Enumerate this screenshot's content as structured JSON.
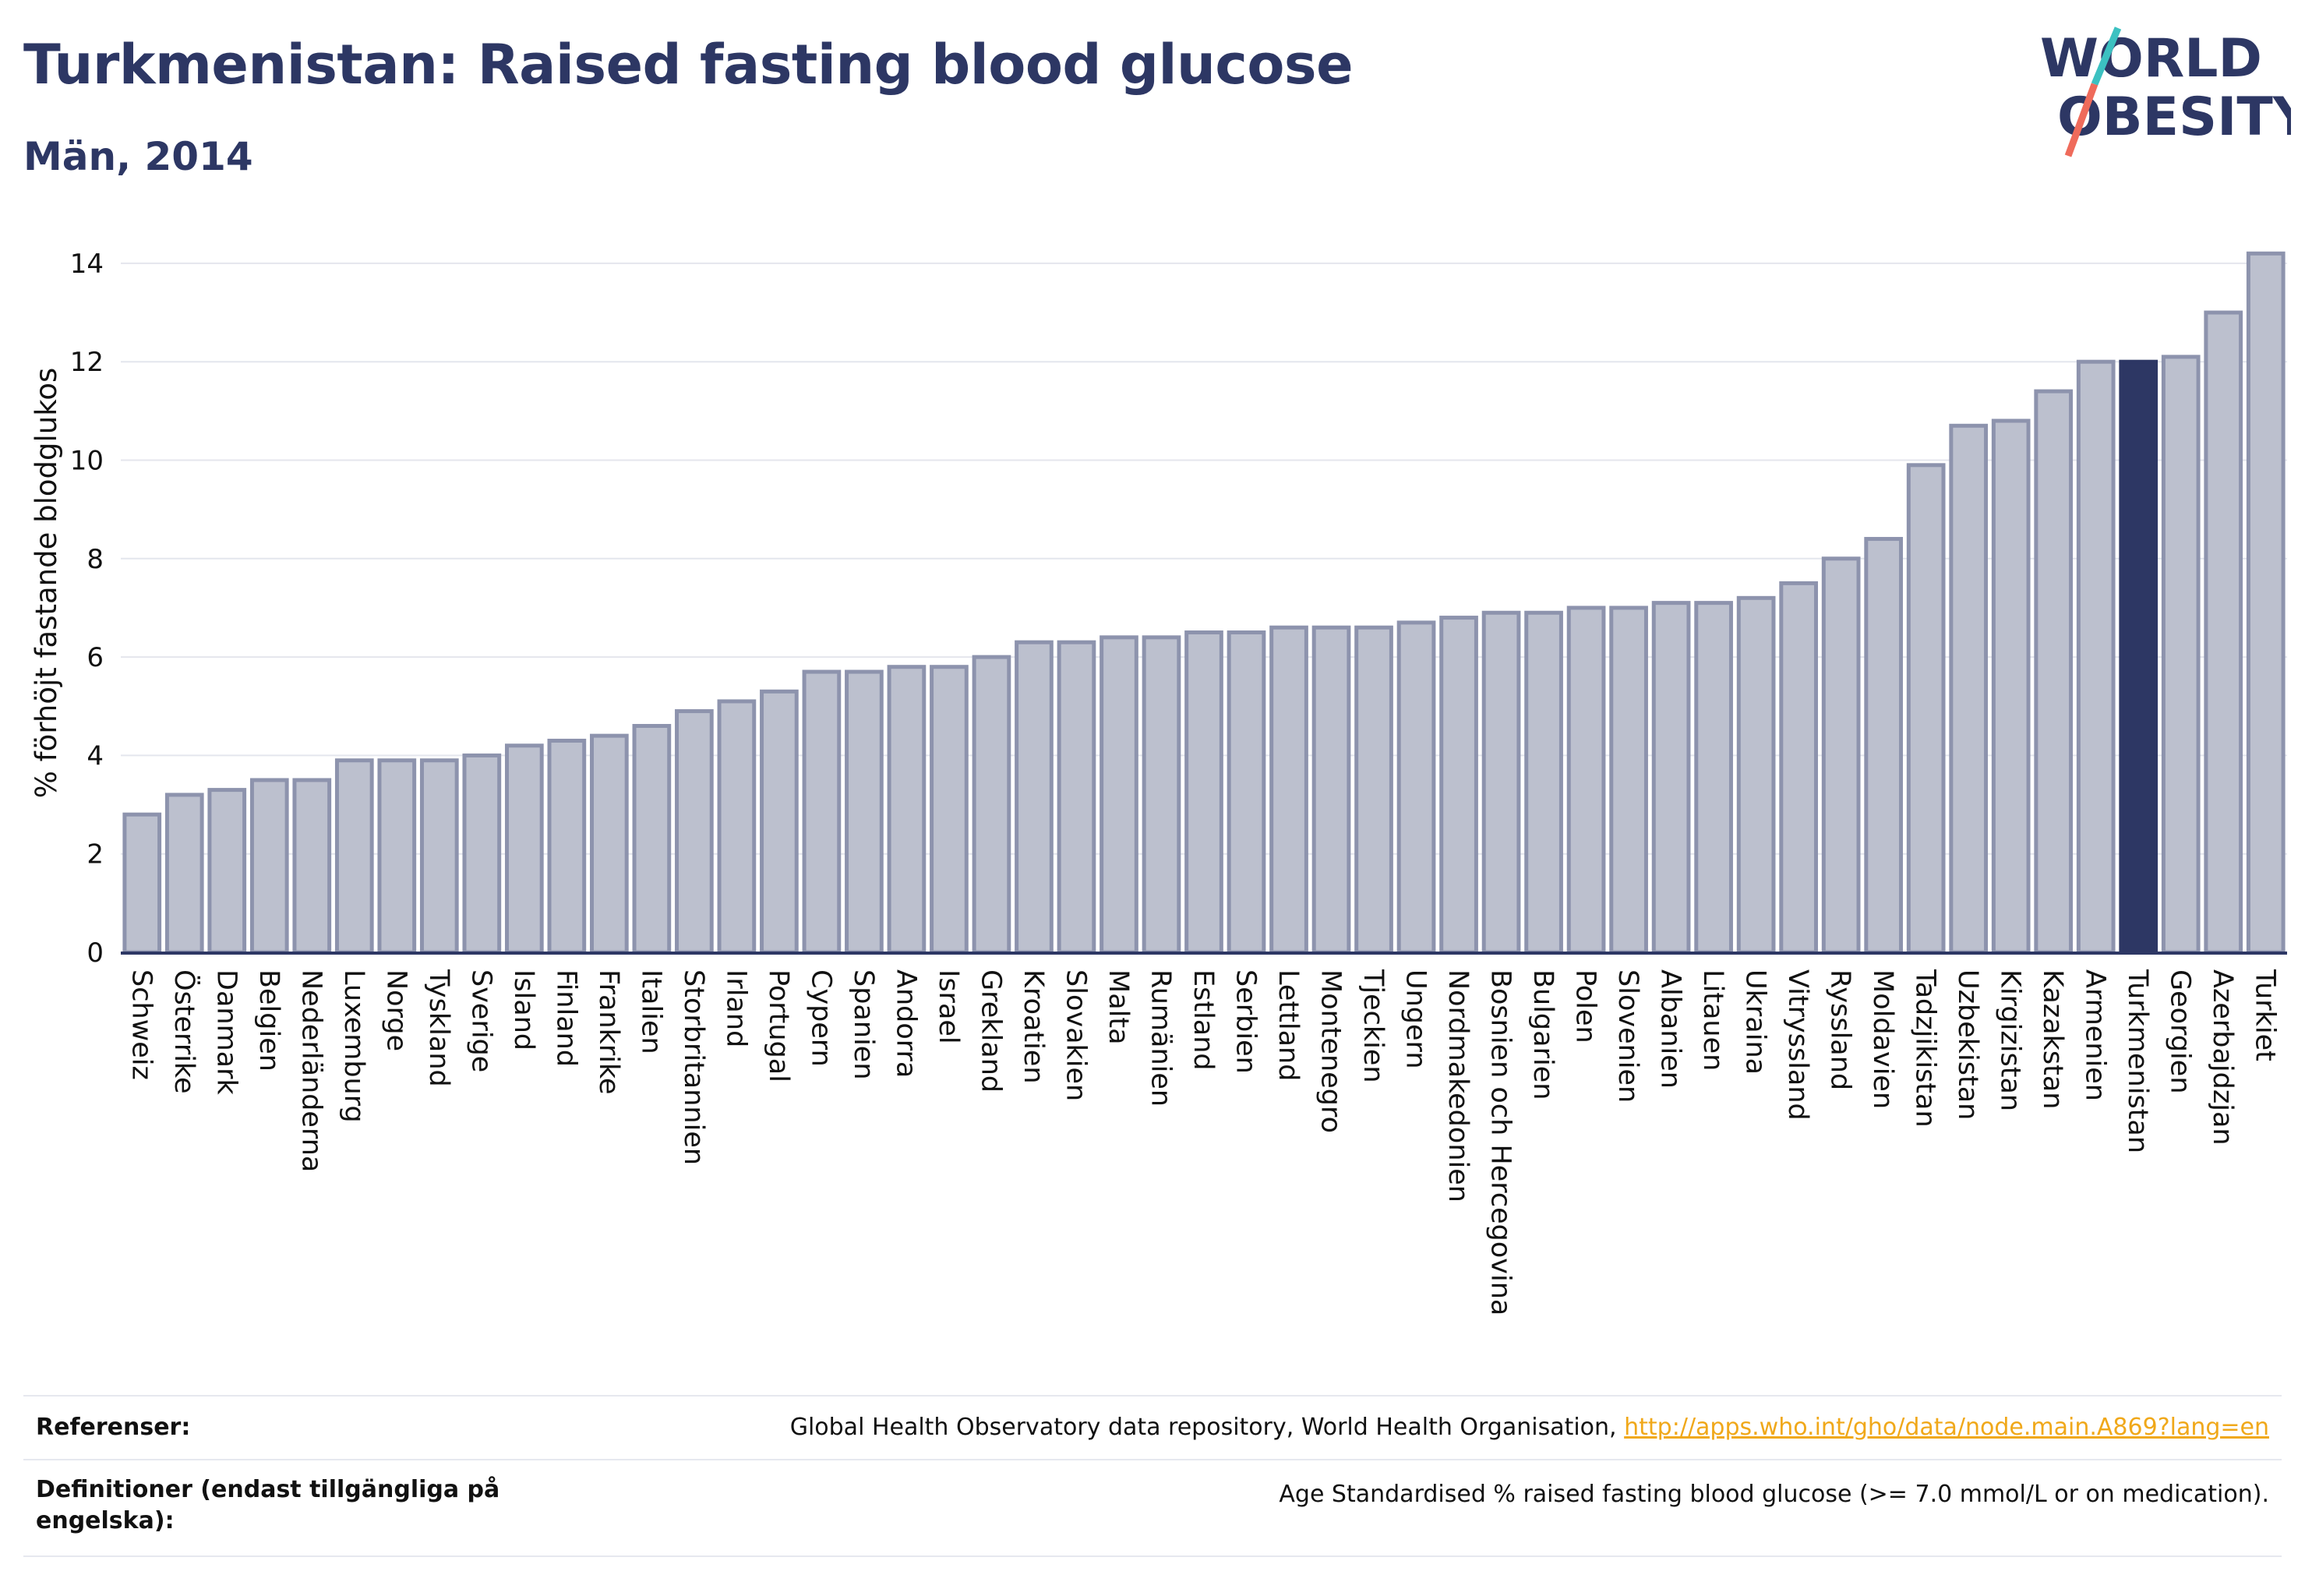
{
  "header": {
    "title": "Turkmenistan: Raised fasting blood glucose",
    "subtitle": "Män, 2014"
  },
  "logo": {
    "line1": "WORLD",
    "line2": "OBESITY",
    "colors": {
      "text": "#2d3764",
      "slash_top": "#3cc1c1",
      "slash_bottom": "#ef6b5b"
    }
  },
  "chart_data": {
    "type": "bar",
    "title": "Turkmenistan: Raised fasting blood glucose",
    "subtitle": "Män, 2014",
    "ylabel": "% förhöjt fastande blodglukos",
    "xlabel": "",
    "ylim": [
      0,
      14.6
    ],
    "yticks": [
      0,
      2,
      4,
      6,
      8,
      10,
      12,
      14
    ],
    "grid": true,
    "highlight": "Turkmenistan",
    "colors": {
      "bar": "#bcc0ce",
      "bar_edge": "#8d93ad",
      "highlight": "#2d3764",
      "grid": "#e4e6ed",
      "axis": "#2d3764"
    },
    "categories": [
      "Schweiz",
      "Österrike",
      "Danmark",
      "Belgien",
      "Nederländerna",
      "Luxemburg",
      "Norge",
      "Tyskland",
      "Sverige",
      "Island",
      "Finland",
      "Frankrike",
      "Italien",
      "Storbritannien",
      "Irland",
      "Portugal",
      "Cypern",
      "Spanien",
      "Andorra",
      "Israel",
      "Grekland",
      "Kroatien",
      "Slovakien",
      "Malta",
      "Rumänien",
      "Estland",
      "Serbien",
      "Lettland",
      "Montenegro",
      "Tjeckien",
      "Ungern",
      "Nordmakedonien",
      "Bosnien och Hercegovina",
      "Bulgarien",
      "Polen",
      "Slovenien",
      "Albanien",
      "Litauen",
      "Ukraina",
      "Vitryssland",
      "Ryssland",
      "Moldavien",
      "Tadzjikistan",
      "Uzbekistan",
      "Kirgizistan",
      "Kazakstan",
      "Armenien",
      "Turkmenistan",
      "Georgien",
      "Azerbajdzjan",
      "Turkiet"
    ],
    "values": [
      2.8,
      3.2,
      3.3,
      3.5,
      3.5,
      3.9,
      3.9,
      3.9,
      4.0,
      4.2,
      4.3,
      4.4,
      4.6,
      4.9,
      5.1,
      5.3,
      5.7,
      5.7,
      5.8,
      5.8,
      6.0,
      6.3,
      6.3,
      6.4,
      6.4,
      6.5,
      6.5,
      6.6,
      6.6,
      6.6,
      6.7,
      6.8,
      6.9,
      6.9,
      7.0,
      7.0,
      7.1,
      7.1,
      7.2,
      7.5,
      8.0,
      8.4,
      9.9,
      10.7,
      10.8,
      11.4,
      12.0,
      12.0,
      12.1,
      13.0,
      14.2
    ]
  },
  "references": {
    "ref_label": "Referenser:",
    "ref_text": "Global Health Observatory data repository, World Health Organisation,",
    "ref_link": "http://apps.who.int/gho/data/node.main.A869?lang=en",
    "def_label": "Definitioner (endast tillgängliga på engelska):",
    "def_text": "Age Standardised % raised fasting blood glucose (>= 7.0 mmol/L or on medication)."
  }
}
